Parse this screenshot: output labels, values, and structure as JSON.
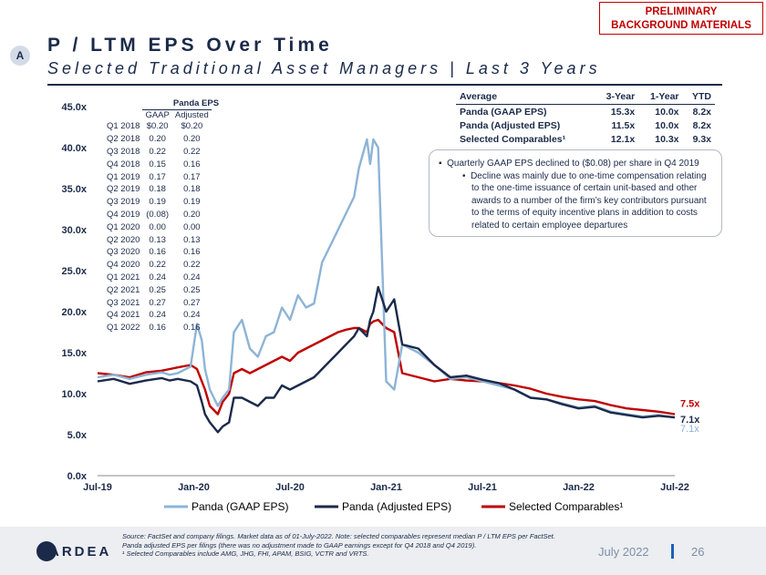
{
  "header": {
    "badge": "A",
    "preliminary_line1": "PRELIMINARY",
    "preliminary_line2": "BACKGROUND MATERIALS",
    "title": "P / LTM EPS Over Time",
    "subtitle": "Selected Traditional Asset Managers | Last 3 Years"
  },
  "averages_table": {
    "headers": [
      "Average",
      "3-Year",
      "1-Year",
      "YTD"
    ],
    "rows": [
      [
        "Panda (GAAP EPS)",
        "15.3x",
        "10.0x",
        "8.2x"
      ],
      [
        "Panda (Adjusted EPS)",
        "11.5x",
        "10.0x",
        "8.2x"
      ],
      [
        "Selected Comparables¹",
        "12.1x",
        "10.3x",
        "9.3x"
      ]
    ]
  },
  "eps_table": {
    "title": "Panda EPS",
    "headers": [
      "",
      "GAAP",
      "Adjusted"
    ],
    "rows": [
      [
        "Q1 2018",
        "$0.20",
        "$0.20"
      ],
      [
        "Q2 2018",
        "0.20",
        "0.20"
      ],
      [
        "Q3 2018",
        "0.22",
        "0.22"
      ],
      [
        "Q4 2018",
        "0.15",
        "0.16"
      ],
      [
        "Q1 2019",
        "0.17",
        "0.17"
      ],
      [
        "Q2 2019",
        "0.18",
        "0.18"
      ],
      [
        "Q3 2019",
        "0.19",
        "0.19"
      ],
      [
        "Q4 2019",
        "(0.08)",
        "0.20"
      ],
      [
        "Q1 2020",
        "0.00",
        "0.00"
      ],
      [
        "Q2 2020",
        "0.13",
        "0.13"
      ],
      [
        "Q3 2020",
        "0.16",
        "0.16"
      ],
      [
        "Q4 2020",
        "0.22",
        "0.22"
      ],
      [
        "Q1 2021",
        "0.24",
        "0.24"
      ],
      [
        "Q2 2021",
        "0.25",
        "0.25"
      ],
      [
        "Q3 2021",
        "0.27",
        "0.27"
      ],
      [
        "Q4 2021",
        "0.24",
        "0.24"
      ],
      [
        "Q1 2022",
        "0.16",
        "0.16"
      ]
    ]
  },
  "callout": {
    "bullet": "Quarterly GAAP EPS declined to ($0.08) per share in Q4 2019",
    "sub_bullet": "Decline was mainly due to one-time compensation relating to the one-time issuance of certain unit-based and other awards to a number of the firm’s key contributors pursuant to the terms of equity incentive plans in addition to costs related to certain employee departures"
  },
  "footer": {
    "logo": "ARDEA",
    "source_line1": "Source: FactSet and company filings. Market data as of 01-July-2022. Note: selected comparables represent median P / LTM EPS per FactSet.",
    "source_line2": "Panda adjusted EPS per filings (there was no adjustment made to GAAP earnings except for Q4 2018 and Q4 2019).",
    "source_line3": "¹ Selected Comparables include AMG, JHG, FHI, APAM, BSIG, VCTR and VRTS.",
    "date": "July 2022",
    "page": "26"
  },
  "colors": {
    "gaap": "#8db4d6",
    "adjusted": "#1b2a4a",
    "comparables": "#c00000",
    "navy": "#1b2a4a"
  },
  "chart_data": {
    "type": "line",
    "title": "P / LTM EPS Over Time",
    "x_tick_labels": [
      "Jul-19",
      "Jan-20",
      "Jul-20",
      "Jan-21",
      "Jul-21",
      "Jan-22",
      "Jul-22"
    ],
    "x_range_months": [
      0,
      36
    ],
    "ylim": [
      0,
      45
    ],
    "y_ticks": [
      0,
      5,
      10,
      15,
      20,
      25,
      30,
      35,
      40,
      45
    ],
    "y_tick_labels": [
      "0.0x",
      "5.0x",
      "10.0x",
      "15.0x",
      "20.0x",
      "25.0x",
      "30.0x",
      "35.0x",
      "40.0x",
      "45.0x"
    ],
    "x_unit": "months since Jul-2019",
    "series": [
      {
        "name": "Panda (GAAP EPS)",
        "color": "#8db4d6",
        "x": [
          0,
          1,
          2,
          3,
          4,
          4.5,
          5,
          5.8,
          6.2,
          6.5,
          6.7,
          7,
          7.5,
          7.8,
          8.2,
          8.5,
          9,
          9.5,
          10,
          10.5,
          11,
          11.5,
          12,
          12.5,
          13,
          13.5,
          14,
          14.5,
          15,
          15.5,
          16,
          16.3,
          16.8,
          17,
          17.2,
          17.5,
          18,
          18.5,
          19,
          20,
          21,
          22,
          23,
          24,
          25,
          26,
          27,
          28,
          29,
          30,
          31,
          32,
          33,
          34,
          35,
          36
        ],
        "y": [
          12,
          12.3,
          11.8,
          12.3,
          12.6,
          12.3,
          12.5,
          13.3,
          18.5,
          16.5,
          13,
          10.5,
          8.5,
          9.5,
          10.5,
          17.5,
          19,
          15.5,
          14.5,
          17,
          17.5,
          20.5,
          19,
          22,
          20.5,
          21,
          26,
          28,
          30,
          32,
          34,
          37.5,
          41,
          38,
          41,
          40,
          11.5,
          10.5,
          16,
          15,
          13.5,
          11.8,
          12,
          11.5,
          11,
          10.5,
          9.5,
          9.3,
          8.8,
          8.3,
          8.5,
          7.8,
          7.5,
          7.2,
          7.4,
          7.1
        ],
        "end_label": "7.1x"
      },
      {
        "name": "Panda (Adjusted EPS)",
        "color": "#1b2a4a",
        "x": [
          0,
          1,
          2,
          3,
          4,
          4.5,
          5,
          5.8,
          6.2,
          6.5,
          6.7,
          7,
          7.5,
          7.8,
          8.2,
          8.5,
          9,
          9.5,
          10,
          10.5,
          11,
          11.5,
          12,
          12.5,
          13,
          13.5,
          14,
          14.5,
          15,
          15.5,
          16,
          16.3,
          16.8,
          17,
          17.2,
          17.5,
          18,
          18.5,
          19,
          20,
          21,
          22,
          23,
          24,
          25,
          26,
          27,
          28,
          29,
          30,
          31,
          32,
          33,
          34,
          35,
          36
        ],
        "y": [
          11.5,
          11.8,
          11.2,
          11.6,
          11.9,
          11.6,
          11.8,
          11.5,
          11,
          9,
          7.5,
          6.5,
          5.3,
          6,
          6.5,
          9.5,
          9.5,
          9,
          8.5,
          9.5,
          9.5,
          11,
          10.5,
          11,
          11.5,
          12,
          13,
          14,
          15,
          16,
          17,
          18,
          17,
          19,
          20,
          23,
          20,
          21.5,
          16,
          15.5,
          13.5,
          12,
          12.2,
          11.7,
          11.3,
          10.5,
          9.5,
          9.3,
          8.7,
          8.2,
          8.4,
          7.7,
          7.4,
          7.1,
          7.3,
          7.1
        ],
        "end_label": "7.1x"
      },
      {
        "name": "Selected Comparables¹",
        "color": "#c00000",
        "x": [
          0,
          1,
          2,
          3,
          4,
          4.5,
          5,
          5.8,
          6.2,
          6.5,
          6.7,
          7,
          7.5,
          7.8,
          8.2,
          8.5,
          9,
          9.5,
          10,
          10.5,
          11,
          11.5,
          12,
          12.5,
          13,
          13.5,
          14,
          14.5,
          15,
          15.5,
          16,
          16.3,
          16.8,
          17,
          17.2,
          17.5,
          18,
          18.5,
          19,
          20,
          21,
          22,
          23,
          24,
          25,
          26,
          27,
          28,
          29,
          30,
          31,
          32,
          33,
          34,
          35,
          36
        ],
        "y": [
          12.5,
          12.3,
          12,
          12.6,
          12.8,
          13,
          13.2,
          13.5,
          13,
          11.5,
          10.5,
          8.5,
          7.5,
          9,
          10,
          12.5,
          13,
          12.5,
          13,
          13.5,
          14,
          14.5,
          14,
          15,
          15.5,
          16,
          16.5,
          17,
          17.5,
          17.8,
          18,
          18,
          17.5,
          18.5,
          18.8,
          19,
          18,
          17.5,
          12.5,
          12,
          11.5,
          11.8,
          11.6,
          11.5,
          11.3,
          11,
          10.6,
          10,
          9.6,
          9.3,
          9.1,
          8.6,
          8.2,
          8,
          7.8,
          7.5
        ],
        "end_label": "7.5x"
      }
    ],
    "legend": [
      "Panda (GAAP EPS)",
      "Panda (Adjusted EPS)",
      "Selected Comparables¹"
    ],
    "legend_position": "bottom-center"
  }
}
